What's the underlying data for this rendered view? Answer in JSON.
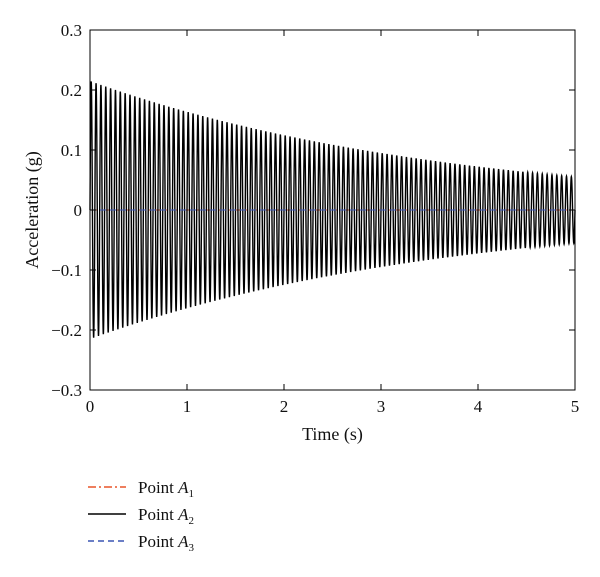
{
  "chart_data": {
    "type": "line",
    "xlabel": "Time (s)",
    "ylabel": "Acceleration (g)",
    "xlim": [
      0,
      5
    ],
    "ylim": [
      -0.3,
      0.3
    ],
    "xticks": [
      0,
      1,
      2,
      3,
      4,
      5
    ],
    "yticks": [
      -0.3,
      -0.2,
      -0.1,
      0,
      0.1,
      0.2,
      0.3
    ],
    "ytick_labels": [
      "−0.3",
      "−0.2",
      "−0.1",
      "0",
      "0.1",
      "0.2",
      "0.3"
    ],
    "grid": false,
    "legend_position": "below",
    "oscillation": {
      "frequency_hz": 20,
      "initial_amplitude_g": 0.215,
      "final_amplitude_g": 0.055,
      "duration_s": 5
    },
    "series": [
      {
        "name": "Point A1",
        "label": "Point ",
        "symbol": "A",
        "subscript": "1",
        "color": "#e8552a",
        "style": "dash-dot",
        "amplitude_g": 0.0
      },
      {
        "name": "Point A2",
        "label": "Point ",
        "symbol": "A",
        "subscript": "2",
        "color": "#000000",
        "style": "solid",
        "amplitude_g": 0.215
      },
      {
        "name": "Point A3",
        "label": "Point ",
        "symbol": "A",
        "subscript": "3",
        "color": "#3a55b4",
        "style": "dashed",
        "amplitude_g": 0.0
      }
    ]
  }
}
